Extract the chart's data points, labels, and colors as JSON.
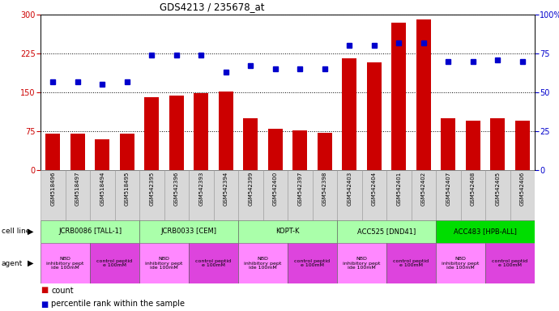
{
  "title": "GDS4213 / 235678_at",
  "samples": [
    "GSM518496",
    "GSM518497",
    "GSM518494",
    "GSM518495",
    "GSM542395",
    "GSM542396",
    "GSM542393",
    "GSM542394",
    "GSM542399",
    "GSM542400",
    "GSM542397",
    "GSM542398",
    "GSM542403",
    "GSM542404",
    "GSM542401",
    "GSM542402",
    "GSM542407",
    "GSM542408",
    "GSM542405",
    "GSM542406"
  ],
  "counts": [
    70,
    70,
    60,
    70,
    140,
    143,
    148,
    152,
    100,
    80,
    77,
    72,
    215,
    208,
    285,
    290,
    100,
    95,
    100,
    95
  ],
  "percentiles": [
    57,
    57,
    55,
    57,
    74,
    74,
    74,
    63,
    67,
    65,
    65,
    65,
    80,
    80,
    82,
    82,
    70,
    70,
    71,
    70
  ],
  "ylim_left": [
    0,
    300
  ],
  "ylim_right": [
    0,
    100
  ],
  "yticks_left": [
    0,
    75,
    150,
    225,
    300
  ],
  "yticks_right": [
    0,
    25,
    50,
    75,
    100
  ],
  "bar_color": "#cc0000",
  "dot_color": "#0000cc",
  "cell_lines": [
    {
      "label": "JCRB0086 [TALL-1]",
      "start": 0,
      "end": 4,
      "color": "#aaffaa"
    },
    {
      "label": "JCRB0033 [CEM]",
      "start": 4,
      "end": 8,
      "color": "#aaffaa"
    },
    {
      "label": "KOPT-K",
      "start": 8,
      "end": 12,
      "color": "#aaffaa"
    },
    {
      "label": "ACC525 [DND41]",
      "start": 12,
      "end": 16,
      "color": "#aaffaa"
    },
    {
      "label": "ACC483 [HPB-ALL]",
      "start": 16,
      "end": 20,
      "color": "#00dd00"
    }
  ],
  "agents": [
    {
      "label": "NBD\ninhibitory pept\nide 100mM",
      "start": 0,
      "end": 2,
      "color": "#ff88ff"
    },
    {
      "label": "control peptid\ne 100mM",
      "start": 2,
      "end": 4,
      "color": "#dd44dd"
    },
    {
      "label": "NBD\ninhibitory pept\nide 100mM",
      "start": 4,
      "end": 6,
      "color": "#ff88ff"
    },
    {
      "label": "control peptid\ne 100mM",
      "start": 6,
      "end": 8,
      "color": "#dd44dd"
    },
    {
      "label": "NBD\ninhibitory pept\nide 100mM",
      "start": 8,
      "end": 10,
      "color": "#ff88ff"
    },
    {
      "label": "control peptid\ne 100mM",
      "start": 10,
      "end": 12,
      "color": "#dd44dd"
    },
    {
      "label": "NBD\ninhibitory pept\nide 100mM",
      "start": 12,
      "end": 14,
      "color": "#ff88ff"
    },
    {
      "label": "control peptid\ne 100mM",
      "start": 14,
      "end": 16,
      "color": "#dd44dd"
    },
    {
      "label": "NBD\ninhibitory pept\nide 100mM",
      "start": 16,
      "end": 18,
      "color": "#ff88ff"
    },
    {
      "label": "control peptid\ne 100mM",
      "start": 18,
      "end": 20,
      "color": "#dd44dd"
    }
  ],
  "legend_items": [
    {
      "label": "count",
      "color": "#cc0000"
    },
    {
      "label": "percentile rank within the sample",
      "color": "#0000cc"
    }
  ],
  "fig_width": 6.9,
  "fig_height": 3.84,
  "dpi": 100
}
